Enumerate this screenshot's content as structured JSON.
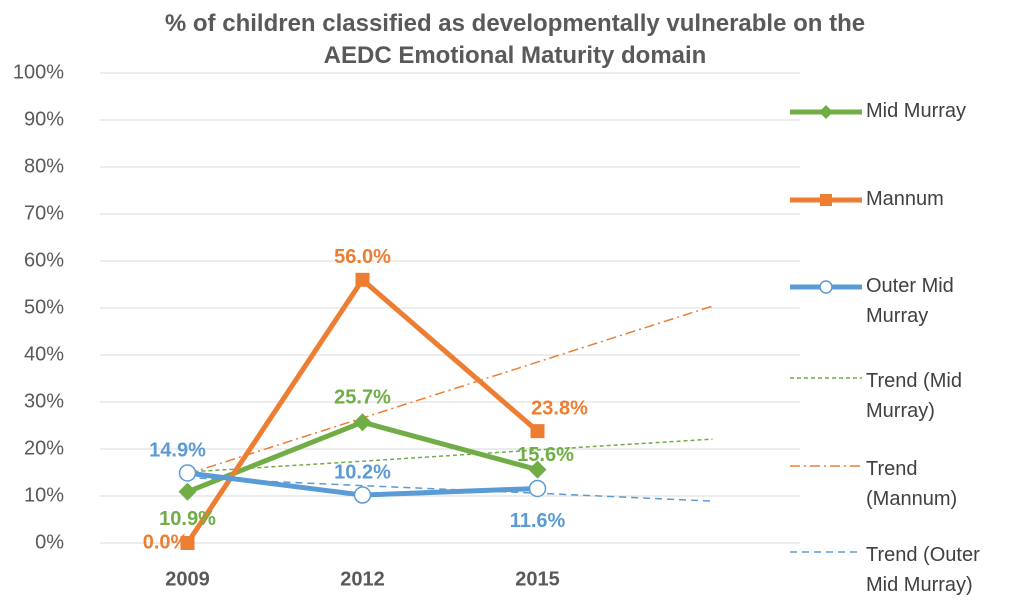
{
  "chart_data": {
    "type": "line",
    "title": "% of children classified as developmentally vulnerable on the AEDC Emotional Maturity domain",
    "categories": [
      "2009",
      "2012",
      "2015",
      null
    ],
    "ylim": [
      0,
      100
    ],
    "yticks": [
      {
        "value": 0,
        "label": "0%"
      },
      {
        "value": 10,
        "label": "10%"
      },
      {
        "value": 20,
        "label": "20%"
      },
      {
        "value": 30,
        "label": "30%"
      },
      {
        "value": 40,
        "label": "40%"
      },
      {
        "value": 50,
        "label": "50%"
      },
      {
        "value": 60,
        "label": "60%"
      },
      {
        "value": 70,
        "label": "70%"
      },
      {
        "value": 80,
        "label": "80%"
      },
      {
        "value": 90,
        "label": "90%"
      },
      {
        "value": 100,
        "label": "100%"
      }
    ],
    "grid": true,
    "legend": "right",
    "series": [
      {
        "name": "Mid Murray",
        "color": "#70ad47",
        "values": [
          10.9,
          25.7,
          15.6,
          null
        ],
        "value_labels": [
          "10.9%",
          "25.7%",
          "15.6%",
          null
        ]
      },
      {
        "name": "Mannum",
        "color": "#ed7d31",
        "values": [
          0.0,
          56.0,
          23.8,
          null
        ],
        "value_labels": [
          "0.0%",
          "56.0%",
          "23.8%",
          null
        ]
      },
      {
        "name": "Outer Mid Murray",
        "color": "#5b9bd5",
        "values": [
          14.9,
          10.2,
          11.6,
          null
        ],
        "value_labels": [
          "14.9%",
          "10.2%",
          "11.6%",
          null
        ]
      },
      {
        "name": "Trend (Mid Murray)",
        "color": "#70ad47",
        "values": [
          15.1,
          17.4,
          19.8,
          22.1
        ]
      },
      {
        "name": "Trend (Mannum)",
        "color": "#ed7d31",
        "values": [
          14.7,
          26.6,
          38.5,
          50.4
        ]
      },
      {
        "name": "Trend (Outer Mid Murray)",
        "color": "#5b9bd5",
        "values": [
          13.9,
          12.2,
          10.6,
          8.9
        ]
      }
    ]
  }
}
